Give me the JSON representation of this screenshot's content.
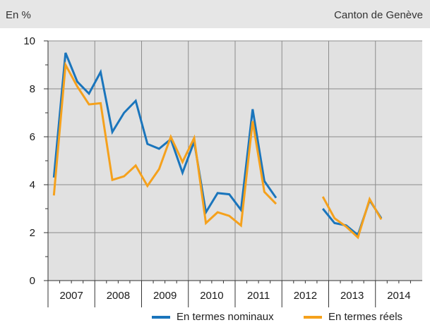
{
  "header": {
    "unit": "En %",
    "source": "Canton de Genève"
  },
  "colors": {
    "nominal": "#1a75bc",
    "real": "#f5a11c",
    "plot_bg": "#e1e1e1",
    "grid": "#8c8c8c"
  },
  "chart_data": {
    "type": "line",
    "title": "",
    "xlabel": "",
    "ylabel": "",
    "x_unit": "quarter",
    "x_range": [
      "2007 Q1",
      "2014 Q4"
    ],
    "ylim": [
      0,
      10
    ],
    "yticks": [
      0,
      2,
      4,
      6,
      8,
      10
    ],
    "years": [
      "2007",
      "2008",
      "2009",
      "2010",
      "2011",
      "2012",
      "2013",
      "2014"
    ],
    "categories": [
      "2007 Q1",
      "2007 Q2",
      "2007 Q3",
      "2007 Q4",
      "2008 Q1",
      "2008 Q2",
      "2008 Q3",
      "2008 Q4",
      "2009 Q1",
      "2009 Q2",
      "2009 Q3",
      "2009 Q4",
      "2010 Q1",
      "2010 Q2",
      "2010 Q3",
      "2010 Q4",
      "2011 Q1",
      "2011 Q2",
      "2011 Q3",
      "2011 Q4",
      "2012 Q1",
      "2012 Q2",
      "2012 Q3",
      "2012 Q4",
      "2013 Q1",
      "2013 Q2",
      "2013 Q3",
      "2013 Q4",
      "2014 Q1",
      "2014 Q2",
      "2014 Q3",
      "2014 Q4"
    ],
    "grid": true,
    "legend_position": "bottom-right",
    "series": [
      {
        "name": "En termes nominaux",
        "color_key": "nominal",
        "values": [
          4.3,
          9.5,
          8.3,
          7.8,
          8.7,
          6.2,
          7.0,
          7.5,
          5.7,
          5.5,
          5.9,
          4.5,
          5.8,
          2.85,
          3.65,
          3.6,
          2.95,
          7.15,
          4.15,
          3.45,
          null,
          null,
          null,
          3.0,
          2.4,
          2.3,
          1.9,
          3.35,
          2.6,
          null,
          null,
          null
        ]
      },
      {
        "name": "En termes réels",
        "color_key": "real",
        "values": [
          3.55,
          9.0,
          8.1,
          7.35,
          7.4,
          4.2,
          4.35,
          4.8,
          3.95,
          4.65,
          6.0,
          4.95,
          5.95,
          2.4,
          2.85,
          2.7,
          2.3,
          6.65,
          3.7,
          3.2,
          null,
          null,
          null,
          3.5,
          2.6,
          2.25,
          1.8,
          3.4,
          2.55,
          null,
          null,
          null
        ]
      }
    ]
  }
}
